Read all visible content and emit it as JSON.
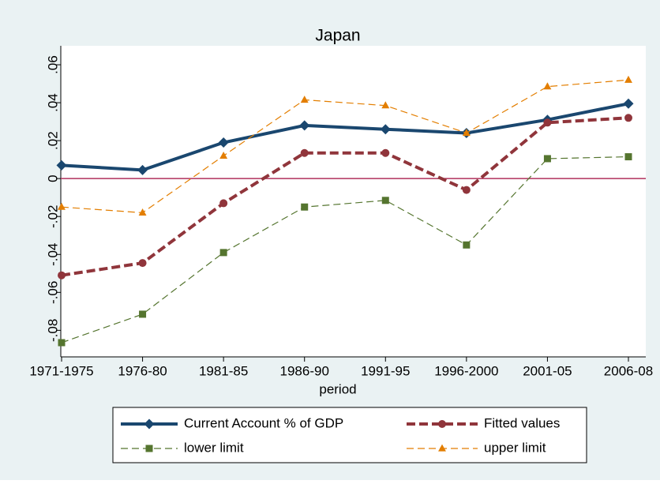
{
  "chart_data": {
    "type": "line",
    "title": "Japan",
    "x_label": "period",
    "categories": [
      "1971-1975",
      "1976-80",
      "1981-85",
      "1986-90",
      "1991-95",
      "1996-2000",
      "2001-05",
      "2006-08"
    ],
    "series": [
      {
        "name": "Current Account % of GDP",
        "color": "#1a476f",
        "marker": "diamond",
        "line_style": "solid",
        "line_weight": "thick",
        "values": [
          0.007,
          0.0045,
          0.019,
          0.028,
          0.026,
          0.024,
          0.031,
          0.0395
        ]
      },
      {
        "name": "Fitted values",
        "color": "#90353b",
        "marker": "circle",
        "line_style": "dashed",
        "line_weight": "thick",
        "values": [
          -0.051,
          -0.0445,
          -0.013,
          0.0135,
          0.0135,
          -0.006,
          0.0295,
          0.032
        ]
      },
      {
        "name": "lower limit",
        "color": "#55752f",
        "marker": "square",
        "line_style": "dashed",
        "line_weight": "thin",
        "values": [
          -0.0865,
          -0.0715,
          -0.039,
          -0.015,
          -0.0115,
          -0.035,
          0.0105,
          0.0115
        ]
      },
      {
        "name": "upper limit",
        "color": "#e37e00",
        "marker": "triangle",
        "line_style": "dashed",
        "line_weight": "thin",
        "values": [
          -0.015,
          -0.018,
          0.012,
          0.0415,
          0.0385,
          0.024,
          0.0485,
          0.052
        ]
      }
    ],
    "ylim": [
      -0.094,
      0.07
    ],
    "yticks": [
      {
        "value": -0.08,
        "label": "-.08"
      },
      {
        "value": -0.06,
        "label": "-.06"
      },
      {
        "value": -0.04,
        "label": "-.04"
      },
      {
        "value": -0.02,
        "label": "-.02"
      },
      0,
      {
        "value": 0.02,
        "label": ".02"
      },
      {
        "value": 0.04,
        "label": ".04"
      },
      {
        "value": 0.06,
        "label": ".06"
      }
    ],
    "yline": 0,
    "yline_color": "#b0305c",
    "grid": false
  }
}
